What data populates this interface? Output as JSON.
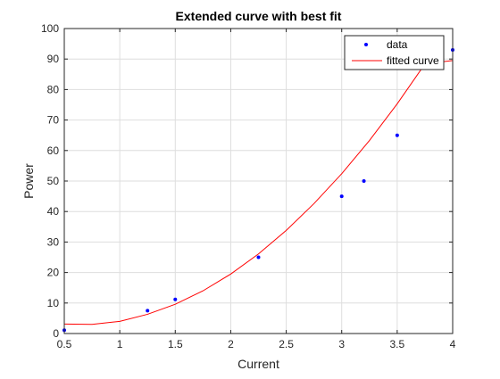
{
  "chart_data": {
    "type": "scatter",
    "title": "Extended curve with best fit",
    "xlabel": "Current",
    "ylabel": "Power",
    "xlim": [
      0.5,
      4
    ],
    "ylim": [
      0,
      100
    ],
    "xticks": [
      0.5,
      1,
      1.5,
      2,
      2.5,
      3,
      3.5,
      4
    ],
    "yticks": [
      0,
      10,
      20,
      30,
      40,
      50,
      60,
      70,
      80,
      90,
      100
    ],
    "grid": true,
    "legend_position": "top-right",
    "series": [
      {
        "name": "data",
        "kind": "points",
        "color": "#0000ff",
        "x": [
          0.5,
          1.25,
          1.5,
          2.25,
          3.0,
          3.2,
          3.5,
          4.0
        ],
        "y": [
          1.1,
          7.5,
          11.2,
          25.0,
          45.0,
          50.0,
          65.0,
          93.0
        ]
      },
      {
        "name": "fitted curve",
        "kind": "line",
        "color": "#ff0000",
        "x": [
          0.5,
          0.75,
          1.0,
          1.25,
          1.5,
          1.75,
          2.0,
          2.25,
          2.5,
          2.75,
          3.0,
          3.25,
          3.5,
          3.75,
          4.0
        ],
        "y": [
          3.1,
          3.0,
          4.0,
          6.3,
          9.6,
          14.0,
          19.5,
          26.1,
          33.8,
          42.6,
          52.4,
          63.3,
          75.3,
          88.4,
          89.5
        ]
      }
    ]
  },
  "colors": {
    "axes": "#262626",
    "grid": "#dedede",
    "background": "#ffffff"
  }
}
